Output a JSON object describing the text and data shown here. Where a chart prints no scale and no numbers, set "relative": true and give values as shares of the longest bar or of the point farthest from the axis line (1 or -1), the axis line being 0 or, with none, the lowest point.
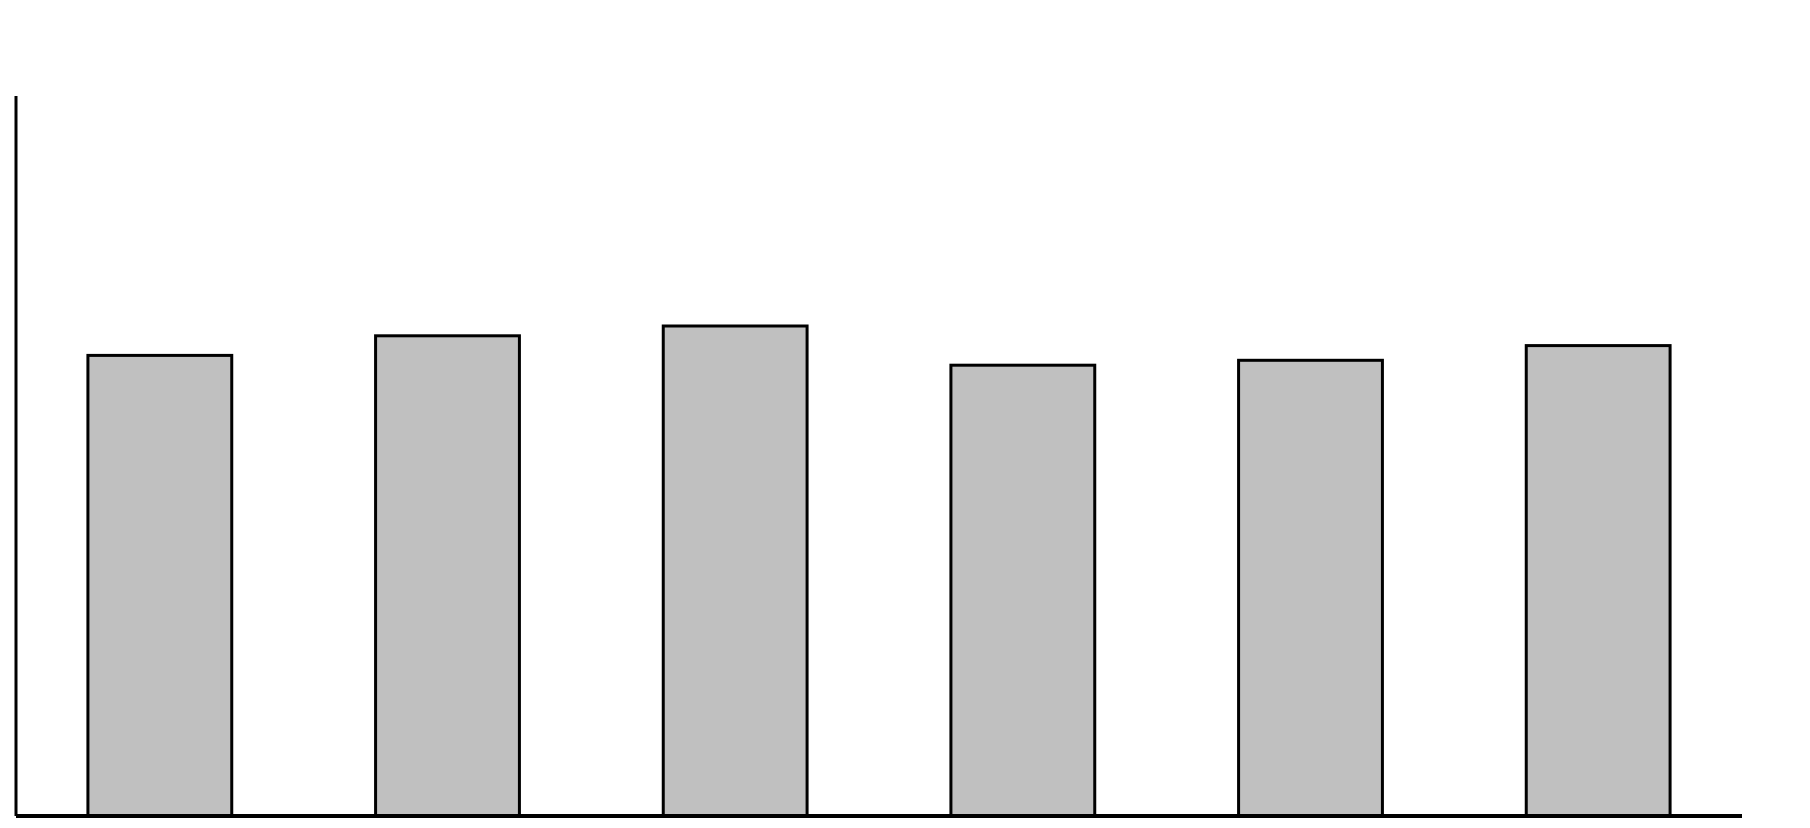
{
  "chart_data": {
    "type": "bar",
    "relative": true,
    "categories": [
      null,
      null,
      null,
      null,
      null,
      null
    ],
    "values": [
      0.94,
      0.98,
      1,
      0.92,
      0.93,
      0.96
    ],
    "color": "#c0c0c0"
  }
}
